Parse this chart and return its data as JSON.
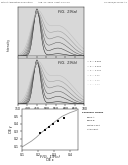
{
  "header_left": "Patent Application Publication",
  "header_mid": "Aug. 21, 2008  Sheet 13 of 16",
  "header_right": "US 2008/0211353 A1",
  "fig_a_label": "FIG. 19(a)",
  "fig_b_label": "FIG. 19(b)",
  "fig_c_label": "FIG. 19(c)",
  "legend_b_labels": [
    "x = 0.000",
    "x = 0.002",
    "x = 0.004",
    "x = 0.01",
    "x = 0.02",
    "x = 0.04"
  ],
  "legend_c_title": "Phosphor Values",
  "legend_c_labels": [
    "BG53-A",
    "BG53-B",
    "y-BAM:Ce3+",
    "YAG:Ce3+"
  ],
  "legend_c_markers": [
    "s",
    "s",
    "^",
    "o"
  ],
  "legend_c_colors": [
    "#222222",
    "#555555",
    "#333333",
    "#777777"
  ],
  "bg_color": "#ffffff",
  "plot_bg": "#d8d8d8",
  "ab_peak_nm": 450,
  "ab_broad_nm": 560,
  "ab_xlim": [
    350,
    700
  ],
  "ab_ylim": [
    0,
    1.05
  ],
  "ab_xlabel": "wavelength (nm)",
  "ab_ylabel": "Intensity",
  "c_xlabel": "CIE x",
  "c_ylabel": "CIE y",
  "c_xlim": [
    0.1,
    0.45
  ],
  "c_ylim": [
    0.05,
    0.6
  ],
  "c_curve_x": [
    0.1,
    0.13,
    0.16,
    0.19,
    0.22,
    0.26,
    0.3,
    0.35,
    0.4,
    0.44
  ],
  "c_curve_y": [
    0.09,
    0.13,
    0.17,
    0.22,
    0.28,
    0.35,
    0.42,
    0.5,
    0.55,
    0.58
  ],
  "c_data_x": [
    0.215,
    0.245,
    0.27,
    0.295,
    0.325,
    0.36
  ],
  "c_data_y": [
    0.275,
    0.315,
    0.355,
    0.395,
    0.435,
    0.475
  ],
  "spec_colors": [
    "#111111",
    "#333333",
    "#555555",
    "#777777",
    "#999999",
    "#bbbbbb"
  ],
  "c_xticks": [
    0.1,
    0.2,
    0.3,
    0.4
  ],
  "c_yticks": [
    0.1,
    0.2,
    0.3,
    0.4,
    0.5
  ]
}
